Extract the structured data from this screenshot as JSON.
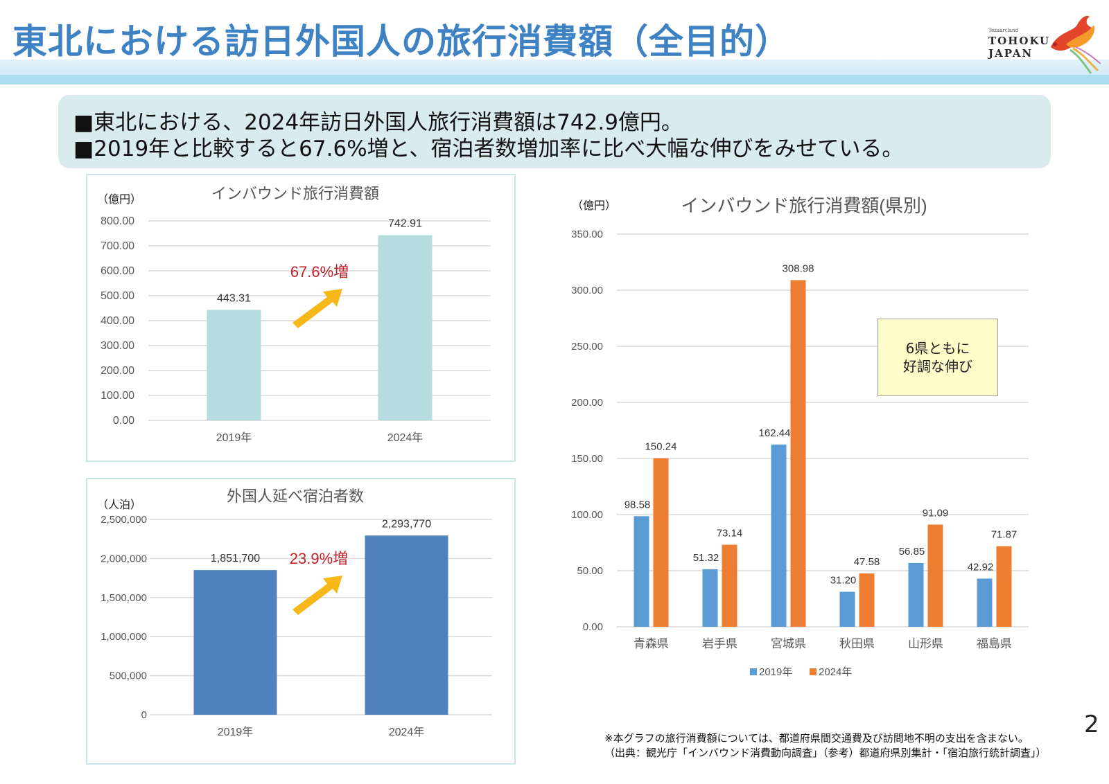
{
  "header": {
    "title": "東北における訪日外国人の旅行消費額（全目的）",
    "logo": {
      "small_text": "Tezaarcland",
      "line1": "TOHOKU",
      "line2": "JAPAN",
      "icon": "phoenix-logo-icon"
    }
  },
  "summary": {
    "lines": [
      "■東北における、2024年訪日外国人旅行消費額は742.9億円。",
      "■2019年と比較すると67.6%増と、宿泊者数増加率に比べ大幅な伸びをみせている。"
    ]
  },
  "colors": {
    "title_blue": "#3f82c4",
    "bar_light_teal": "#b5dde0",
    "bar_dark_blue": "#4f81bd",
    "series_2019": "#5b9bd5",
    "series_2024": "#ed7d31",
    "growth_red": "#c0202a",
    "arrow_yellow": "#f6b81a"
  },
  "callout": {
    "line1": "6県ともに",
    "line2": "好調な伸び"
  },
  "footnotes": [
    "※本グラフの旅行消費額については、都道府県間交通費及び訪問地不明の支出を含まない。",
    "（出典：観光庁「インバウンド消費動向調査」（参考）都道府県別集計・「宿泊旅行統計調査」）"
  ],
  "page_number": "2",
  "chart_data": [
    {
      "id": "inbound-spending-total",
      "type": "bar",
      "title": "インバウンド旅行消費額",
      "ylabel": "（億円）",
      "xlabel": "",
      "categories": [
        "2019年",
        "2024年"
      ],
      "values": [
        443.31,
        742.91
      ],
      "data_labels": [
        "443.31",
        "742.91"
      ],
      "ylim": [
        0,
        800
      ],
      "yticks": [
        0,
        100,
        200,
        300,
        400,
        500,
        600,
        700,
        800
      ],
      "ytick_labels": [
        "0.00",
        "100.00",
        "200.00",
        "300.00",
        "400.00",
        "500.00",
        "600.00",
        "700.00",
        "800.00"
      ],
      "grid": true,
      "annotation": "67.6%増",
      "bar_color": "#b5dde0"
    },
    {
      "id": "foreign-guest-nights",
      "type": "bar",
      "title": "外国人延べ宿泊者数",
      "ylabel": "（人泊）",
      "xlabel": "",
      "categories": [
        "2019年",
        "2024年"
      ],
      "values": [
        1851700,
        2293770
      ],
      "data_labels": [
        "1,851,700",
        "2,293,770"
      ],
      "ylim": [
        0,
        2500000
      ],
      "yticks": [
        0,
        500000,
        1000000,
        1500000,
        2000000,
        2500000
      ],
      "ytick_labels": [
        "0",
        "500,000",
        "1,000,000",
        "1,500,000",
        "2,000,000",
        "2,500,000"
      ],
      "grid": true,
      "annotation": "23.9%増",
      "bar_color": "#4f81bd"
    },
    {
      "id": "inbound-spending-by-prefecture",
      "type": "bar",
      "title": "インバウンド旅行消費額(県別)",
      "ylabel": "（億円）",
      "xlabel": "",
      "categories": [
        "青森県",
        "岩手県",
        "宮城県",
        "秋田県",
        "山形県",
        "福島県"
      ],
      "series": [
        {
          "name": "2019年",
          "color": "#5b9bd5",
          "values": [
            98.58,
            51.32,
            162.44,
            31.2,
            56.85,
            42.92
          ],
          "data_labels": [
            "98.58",
            "51.32",
            "162.44",
            "31.20",
            "56.85",
            "42.92"
          ]
        },
        {
          "name": "2024年",
          "color": "#ed7d31",
          "values": [
            150.24,
            73.14,
            308.98,
            47.58,
            91.09,
            71.87
          ],
          "data_labels": [
            "150.24",
            "73.14",
            "308.98",
            "47.58",
            "91.09",
            "71.87"
          ]
        }
      ],
      "ylim": [
        0,
        350
      ],
      "yticks": [
        0,
        50,
        100,
        150,
        200,
        250,
        300,
        350
      ],
      "ytick_labels": [
        "0.00",
        "50.00",
        "100.00",
        "150.00",
        "200.00",
        "250.00",
        "300.00",
        "350.00"
      ],
      "grid": true,
      "legend": "bottom-center"
    }
  ]
}
